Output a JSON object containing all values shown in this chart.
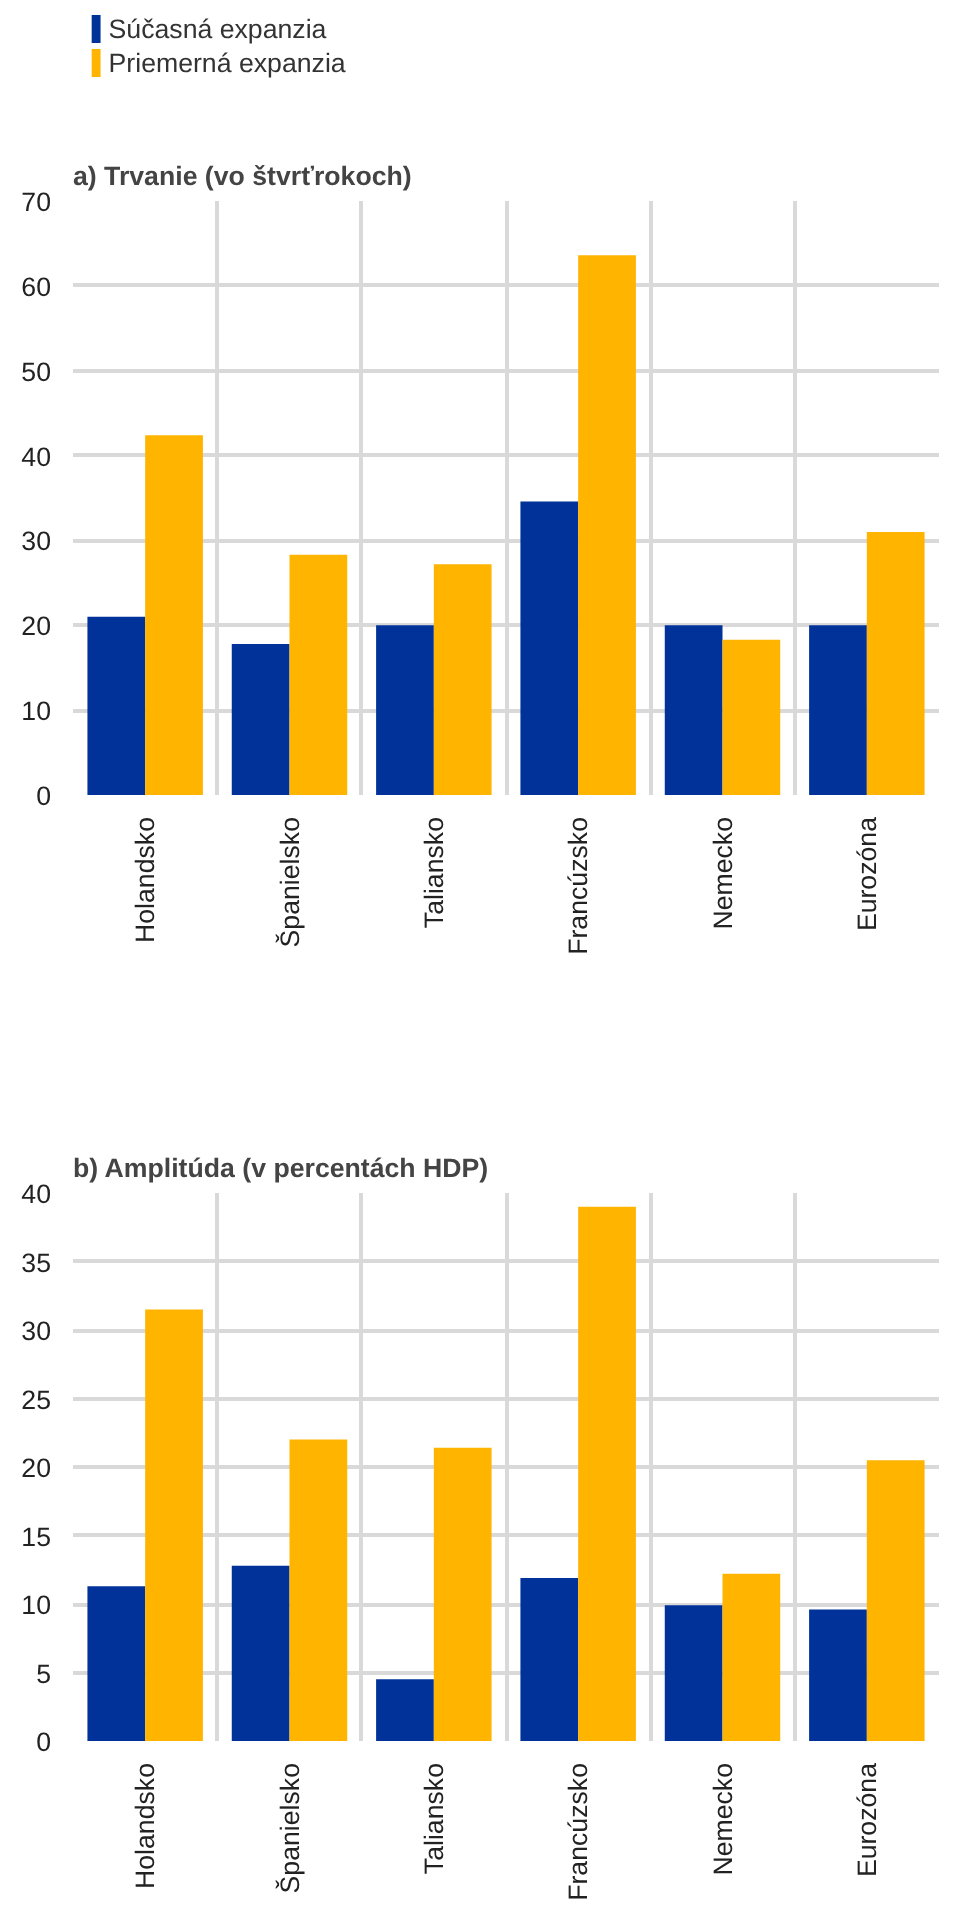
{
  "chart_data": [
    {
      "type": "bar",
      "title": "a) Trvanie (vo štvrťrokoch)",
      "categories": [
        "Holandsko",
        "Španielsko",
        "Taliansko",
        "Francúzsko",
        "Nemecko",
        "Eurozóna"
      ],
      "series": [
        {
          "name": "Súčasná expanzia",
          "color": "#003299",
          "values": [
            21.0,
            17.8,
            20.0,
            34.6,
            20.0,
            20.0
          ]
        },
        {
          "name": "Priemerná expanzia",
          "color": "#ffb400",
          "values": [
            42.4,
            28.3,
            27.2,
            63.6,
            18.3,
            31.0
          ]
        }
      ],
      "ylim": [
        0,
        70
      ],
      "yticks": [
        0,
        10,
        20,
        30,
        40,
        50,
        60,
        70
      ],
      "grid": true,
      "legend": "top left"
    },
    {
      "type": "bar",
      "title": "b) Amplitúda (v percentách HDP)",
      "categories": [
        "Holandsko",
        "Španielsko",
        "Taliansko",
        "Francúzsko",
        "Nemecko",
        "Eurozóna"
      ],
      "series": [
        {
          "color": "#003299",
          "values": [
            11.3,
            12.8,
            4.5,
            11.9,
            9.9,
            9.6
          ]
        },
        {
          "color": "#ffb400",
          "values": [
            31.5,
            22.0,
            21.4,
            39.0,
            12.2,
            20.5
          ]
        }
      ],
      "ylim": [
        0,
        40
      ],
      "yticks": [
        0,
        5,
        10,
        15,
        20,
        25,
        30,
        35,
        40
      ],
      "grid": true
    }
  ]
}
